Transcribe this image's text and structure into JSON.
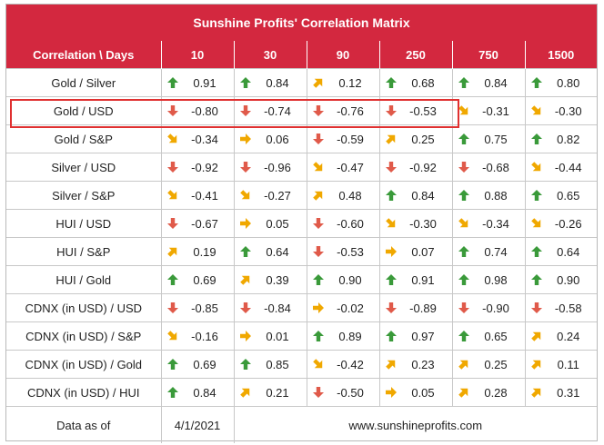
{
  "title": "Sunshine Profits' Correlation Matrix",
  "header": {
    "label_column": "Correlation \\ Days",
    "columns": [
      "10",
      "30",
      "90",
      "250",
      "750",
      "1500"
    ]
  },
  "colors": {
    "header_bg": "#d3283f",
    "up": "#3a9a3a",
    "down": "#e05a4a",
    "flat": "#f0a800",
    "highlight": "#e03030"
  },
  "icons": {
    "up": "arrow-up-icon",
    "down": "arrow-down-icon",
    "up_right": "arrow-up-right-icon",
    "right": "arrow-right-icon",
    "down_right": "arrow-down-right-icon"
  },
  "chart_data": {
    "type": "table",
    "title": "Sunshine Profits' Correlation Matrix",
    "columns": [
      "10",
      "30",
      "90",
      "250",
      "750",
      "1500"
    ],
    "rows": [
      {
        "label": "Gold / Silver",
        "values": [
          0.91,
          0.84,
          0.12,
          0.68,
          0.84,
          0.8
        ],
        "display": [
          "0.91",
          "0.84",
          "0.12",
          "0.68",
          "0.84",
          "0.80"
        ],
        "arrows": [
          "up",
          "up",
          "up_right",
          "up",
          "up",
          "up"
        ]
      },
      {
        "label": "Gold / USD",
        "values": [
          -0.8,
          -0.74,
          -0.76,
          -0.53,
          -0.31,
          -0.3
        ],
        "display": [
          "-0.80",
          "-0.74",
          "-0.76",
          "-0.53",
          "-0.31",
          "-0.30"
        ],
        "arrows": [
          "down",
          "down",
          "down",
          "down",
          "down_right",
          "down_right"
        ],
        "highlighted": true
      },
      {
        "label": "Gold / S&P",
        "values": [
          -0.34,
          0.06,
          -0.59,
          0.25,
          0.75,
          0.82
        ],
        "display": [
          "-0.34",
          "0.06",
          "-0.59",
          "0.25",
          "0.75",
          "0.82"
        ],
        "arrows": [
          "down_right",
          "right",
          "down",
          "up_right",
          "up",
          "up"
        ]
      },
      {
        "label": "Silver / USD",
        "values": [
          -0.92,
          -0.96,
          -0.47,
          -0.92,
          -0.68,
          -0.44
        ],
        "display": [
          "-0.92",
          "-0.96",
          "-0.47",
          "-0.92",
          "-0.68",
          "-0.44"
        ],
        "arrows": [
          "down",
          "down",
          "down_right",
          "down",
          "down",
          "down_right"
        ]
      },
      {
        "label": "Silver / S&P",
        "values": [
          -0.41,
          -0.27,
          0.48,
          0.84,
          0.88,
          0.65
        ],
        "display": [
          "-0.41",
          "-0.27",
          "0.48",
          "0.84",
          "0.88",
          "0.65"
        ],
        "arrows": [
          "down_right",
          "down_right",
          "up_right",
          "up",
          "up",
          "up"
        ]
      },
      {
        "label": "HUI / USD",
        "values": [
          -0.67,
          0.05,
          -0.6,
          -0.3,
          -0.34,
          -0.26
        ],
        "display": [
          "-0.67",
          "0.05",
          "-0.60",
          "-0.30",
          "-0.34",
          "-0.26"
        ],
        "arrows": [
          "down",
          "right",
          "down",
          "down_right",
          "down_right",
          "down_right"
        ]
      },
      {
        "label": "HUI / S&P",
        "values": [
          0.19,
          0.64,
          -0.53,
          0.07,
          0.74,
          0.64
        ],
        "display": [
          "0.19",
          "0.64",
          "-0.53",
          "0.07",
          "0.74",
          "0.64"
        ],
        "arrows": [
          "up_right",
          "up",
          "down",
          "right",
          "up",
          "up"
        ]
      },
      {
        "label": "HUI / Gold",
        "values": [
          0.69,
          0.39,
          0.9,
          0.91,
          0.98,
          0.9
        ],
        "display": [
          "0.69",
          "0.39",
          "0.90",
          "0.91",
          "0.98",
          "0.90"
        ],
        "arrows": [
          "up",
          "up_right",
          "up",
          "up",
          "up",
          "up"
        ]
      },
      {
        "label": "CDNX (in USD) / USD",
        "values": [
          -0.85,
          -0.84,
          -0.02,
          -0.89,
          -0.9,
          -0.58
        ],
        "display": [
          "-0.85",
          "-0.84",
          "-0.02",
          "-0.89",
          "-0.90",
          "-0.58"
        ],
        "arrows": [
          "down",
          "down",
          "right",
          "down",
          "down",
          "down"
        ]
      },
      {
        "label": "CDNX (in USD) / S&P",
        "values": [
          -0.16,
          0.01,
          0.89,
          0.97,
          0.65,
          0.24
        ],
        "display": [
          "-0.16",
          "0.01",
          "0.89",
          "0.97",
          "0.65",
          "0.24"
        ],
        "arrows": [
          "down_right",
          "right",
          "up",
          "up",
          "up",
          "up_right"
        ]
      },
      {
        "label": "CDNX (in USD) / Gold",
        "values": [
          0.69,
          0.85,
          -0.42,
          0.23,
          0.25,
          0.11
        ],
        "display": [
          "0.69",
          "0.85",
          "-0.42",
          "0.23",
          "0.25",
          "0.11"
        ],
        "arrows": [
          "up",
          "up",
          "down_right",
          "up_right",
          "up_right",
          "up_right"
        ]
      },
      {
        "label": "CDNX (in USD) / HUI",
        "values": [
          0.84,
          0.21,
          -0.5,
          0.05,
          0.28,
          0.31
        ],
        "display": [
          "0.84",
          "0.21",
          "-0.50",
          "0.05",
          "0.28",
          "0.31"
        ],
        "arrows": [
          "up",
          "up_right",
          "down",
          "right",
          "up_right",
          "up_right"
        ]
      }
    ]
  },
  "footer": {
    "label": "Data as of",
    "date": "4/1/2021",
    "website": "www.sunshineprofits.com"
  }
}
